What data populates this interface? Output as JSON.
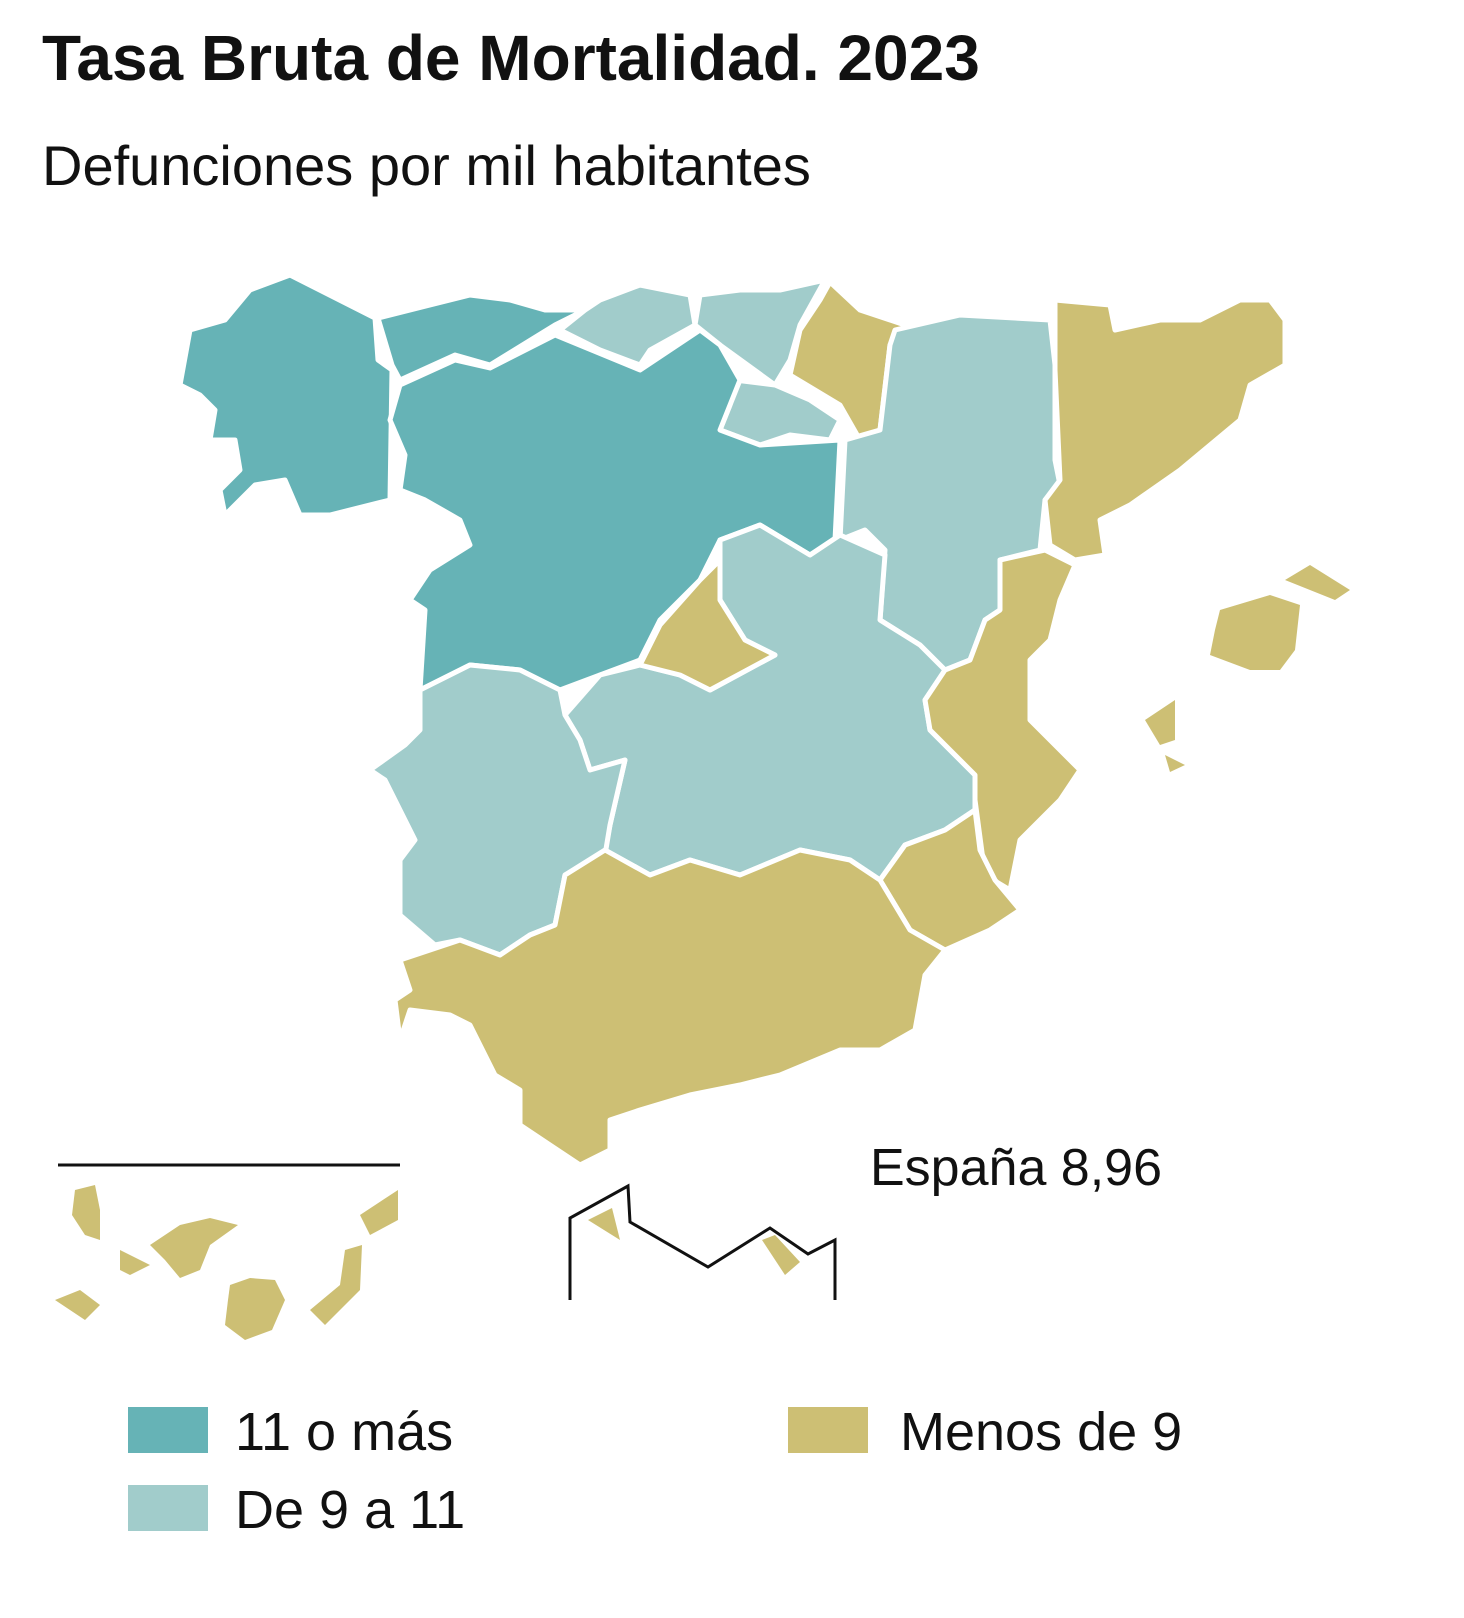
{
  "header": {
    "title": "Tasa Bruta de Mortalidad. 2023",
    "subtitle": "Defunciones por mil habitantes"
  },
  "national": "España 8,96",
  "legend": [
    {
      "label": "11 o más",
      "color": "#66b3b6"
    },
    {
      "label": "De 9 a 11",
      "color": "#a1cccb"
    },
    {
      "label": "Menos de 9",
      "color": "#cdbf74"
    }
  ]
}
